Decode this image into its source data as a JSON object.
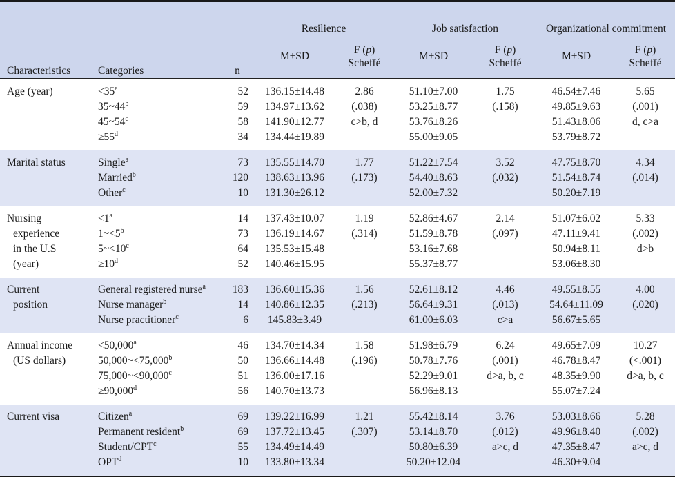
{
  "colors": {
    "header_bg": "#cdd6ed",
    "band_bg": "#dfe4f4"
  },
  "table": {
    "headers": {
      "characteristics": "Characteristics",
      "categories": "Categories",
      "n": "n",
      "groups": [
        "Resilience",
        "Job satisfaction",
        "Organizational commitment"
      ],
      "msd": "M±SD",
      "fp_pre": "F (",
      "fp_p": "p",
      "fp_post": ")",
      "scheffe": "Scheffé"
    },
    "sections": [
      {
        "char_lines": [
          "Age (year)"
        ],
        "rows": [
          {
            "category": "<35",
            "sup": "a",
            "n": "52",
            "res_msd": "136.15±14.48",
            "res_fp": "2.86",
            "job_msd": "51.10±7.00",
            "job_fp": "1.75",
            "org_msd": "46.54±7.46",
            "org_fp": "5.65"
          },
          {
            "category": "35~44",
            "sup": "b",
            "n": "59",
            "res_msd": "134.97±13.62",
            "res_fp": "(.038)",
            "job_msd": "53.25±8.77",
            "job_fp": "(.158)",
            "org_msd": "49.85±9.63",
            "org_fp": "(.001)"
          },
          {
            "category": "45~54",
            "sup": "c",
            "n": "58",
            "res_msd": "141.90±12.77",
            "res_fp": "c>b, d",
            "job_msd": "53.76±8.26",
            "job_fp": "",
            "org_msd": "51.43±8.06",
            "org_fp": "d, c>a"
          },
          {
            "category": "≥55",
            "sup": "d",
            "n": "34",
            "res_msd": "134.44±19.89",
            "res_fp": "",
            "job_msd": "55.00±9.05",
            "job_fp": "",
            "org_msd": "53.79±8.72",
            "org_fp": ""
          }
        ]
      },
      {
        "char_lines": [
          "Marital status"
        ],
        "rows": [
          {
            "category": "Single",
            "sup": "a",
            "n": "73",
            "res_msd": "135.55±14.70",
            "res_fp": "1.77",
            "job_msd": "51.22±7.54",
            "job_fp": "3.52",
            "org_msd": "47.75±8.70",
            "org_fp": "4.34"
          },
          {
            "category": "Married",
            "sup": "b",
            "n": "120",
            "res_msd": "138.63±13.96",
            "res_fp": "(.173)",
            "job_msd": "54.40±8.63",
            "job_fp": "(.032)",
            "org_msd": "51.54±8.74",
            "org_fp": "(.014)"
          },
          {
            "category": "Other",
            "sup": "c",
            "n": "10",
            "res_msd": "131.30±26.12",
            "res_fp": "",
            "job_msd": "52.00±7.32",
            "job_fp": "",
            "org_msd": "50.20±7.19",
            "org_fp": ""
          }
        ]
      },
      {
        "char_lines": [
          "Nursing",
          "experience",
          "in the U.S",
          "(year)"
        ],
        "rows": [
          {
            "category": "<1",
            "sup": "a",
            "n": "14",
            "res_msd": "137.43±10.07",
            "res_fp": "1.19",
            "job_msd": "52.86±4.67",
            "job_fp": "2.14",
            "org_msd": "51.07±6.02",
            "org_fp": "5.33"
          },
          {
            "category": "1~<5",
            "sup": "b",
            "n": "73",
            "res_msd": "136.19±14.67",
            "res_fp": "(.314)",
            "job_msd": "51.59±8.78",
            "job_fp": "(.097)",
            "org_msd": "47.11±9.41",
            "org_fp": "(.002)"
          },
          {
            "category": "5~<10",
            "sup": "c",
            "n": "64",
            "res_msd": "135.53±15.48",
            "res_fp": "",
            "job_msd": "53.16±7.68",
            "job_fp": "",
            "org_msd": "50.94±8.11",
            "org_fp": "d>b"
          },
          {
            "category": "≥10",
            "sup": "d",
            "n": "52",
            "res_msd": "140.46±15.95",
            "res_fp": "",
            "job_msd": "55.37±8.77",
            "job_fp": "",
            "org_msd": "53.06±8.30",
            "org_fp": ""
          }
        ]
      },
      {
        "char_lines": [
          "Current",
          "position"
        ],
        "rows": [
          {
            "category": "General registered nurse",
            "sup": "a",
            "n": "183",
            "res_msd": "136.60±15.36",
            "res_fp": "1.56",
            "job_msd": "52.61±8.12",
            "job_fp": "4.46",
            "org_msd": "49.55±8.55",
            "org_fp": "4.00"
          },
          {
            "category": "Nurse manager",
            "sup": "b",
            "n": "14",
            "res_msd": "140.86±12.35",
            "res_fp": "(.213)",
            "job_msd": "56.64±9.31",
            "job_fp": "(.013)",
            "org_msd": "54.64±11.09",
            "org_fp": "(.020)"
          },
          {
            "category": "Nurse practitioner",
            "sup": "c",
            "n": "6",
            "res_msd": "145.83±3.49",
            "res_fp": "",
            "job_msd": "61.00±6.03",
            "job_fp": "c>a",
            "org_msd": "56.67±5.65",
            "org_fp": ""
          }
        ]
      },
      {
        "char_lines": [
          "Annual income",
          "(US dollars)"
        ],
        "rows": [
          {
            "category": "<50,000",
            "sup": "a",
            "n": "46",
            "res_msd": "134.70±14.34",
            "res_fp": "1.58",
            "job_msd": "51.98±6.79",
            "job_fp": "6.24",
            "org_msd": "49.65±7.09",
            "org_fp": "10.27"
          },
          {
            "category": "50,000~<75,000",
            "sup": "b",
            "n": "50",
            "res_msd": "136.66±14.48",
            "res_fp": "(.196)",
            "job_msd": "50.78±7.76",
            "job_fp": "(.001)",
            "org_msd": "46.78±8.47",
            "org_fp": "(<.001)"
          },
          {
            "category": "75,000~<90,000",
            "sup": "c",
            "n": "51",
            "res_msd": "136.00±17.16",
            "res_fp": "",
            "job_msd": "52.29±9.01",
            "job_fp": "d>a, b, c",
            "org_msd": "48.35±9.90",
            "org_fp": "d>a, b, c"
          },
          {
            "category": "≥90,000",
            "sup": "d",
            "n": "56",
            "res_msd": "140.70±13.73",
            "res_fp": "",
            "job_msd": "56.96±8.13",
            "job_fp": "",
            "org_msd": "55.07±7.24",
            "org_fp": ""
          }
        ]
      },
      {
        "char_lines": [
          "Current visa"
        ],
        "rows": [
          {
            "category": "Citizen",
            "sup": "a",
            "n": "69",
            "res_msd": "139.22±16.99",
            "res_fp": "1.21",
            "job_msd": "55.42±8.14",
            "job_fp": "3.76",
            "org_msd": "53.03±8.66",
            "org_fp": "5.28"
          },
          {
            "category": "Permanent resident",
            "sup": "b",
            "n": "69",
            "res_msd": "137.72±13.45",
            "res_fp": "(.307)",
            "job_msd": "53.14±8.70",
            "job_fp": "(.012)",
            "org_msd": "49.96±8.40",
            "org_fp": "(.002)"
          },
          {
            "category": "Student/CPT",
            "sup": "c",
            "n": "55",
            "res_msd": "134.49±14.49",
            "res_fp": "",
            "job_msd": "50.80±6.39",
            "job_fp": "a>c, d",
            "org_msd": "47.35±8.47",
            "org_fp": "a>c, d"
          },
          {
            "category": "OPT",
            "sup": "d",
            "n": "10",
            "res_msd": "133.80±13.34",
            "res_fp": "",
            "job_msd": "50.20±12.04",
            "job_fp": "",
            "org_msd": "46.30±9.04",
            "org_fp": ""
          }
        ]
      }
    ]
  }
}
